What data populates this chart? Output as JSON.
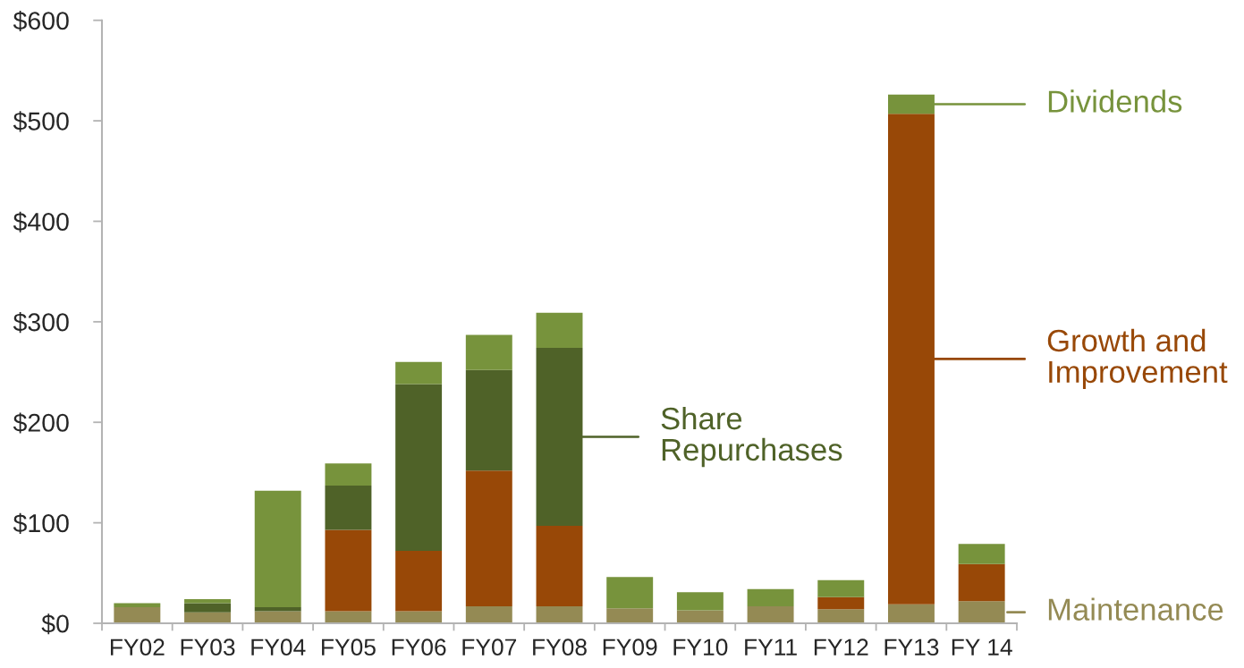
{
  "chart_data": {
    "type": "bar",
    "stacked": true,
    "legend": "right",
    "categories": [
      "FY02",
      "FY03",
      "FY04",
      "FY05",
      "FY06",
      "FY07",
      "FY08",
      "FY09",
      "FY10",
      "FY11",
      "FY12",
      "FY13",
      "FY 14"
    ],
    "series": [
      {
        "name": "Maintenance",
        "color": "#948a54",
        "values": [
          16,
          11,
          12,
          12,
          12,
          17,
          17,
          15,
          13,
          17,
          14,
          19,
          22
        ]
      },
      {
        "name": "Growth and\nImprovement",
        "color": "#984807",
        "values": [
          null,
          null,
          null,
          81,
          60,
          135,
          80,
          null,
          null,
          null,
          12,
          488,
          37
        ]
      },
      {
        "name": "Share\nRepurchases",
        "color": "#4f6228",
        "values": [
          null,
          9,
          4,
          44,
          166,
          100,
          177,
          null,
          null,
          null,
          null,
          null,
          null
        ]
      },
      {
        "name": "Dividends",
        "color": "#77933c",
        "values": [
          4,
          4,
          116,
          22,
          22,
          35,
          35,
          31,
          18,
          17,
          17,
          19,
          20
        ]
      }
    ],
    "ylim": [
      0,
      600
    ],
    "yticks": [
      {
        "value": 0,
        "label": "$0"
      },
      {
        "value": 100,
        "label": "$100"
      },
      {
        "value": 200,
        "label": "$200"
      },
      {
        "value": 300,
        "label": "$300"
      },
      {
        "value": 400,
        "label": "$400"
      },
      {
        "value": 500,
        "label": "$500"
      },
      {
        "value": 600,
        "label": "$600"
      }
    ]
  }
}
